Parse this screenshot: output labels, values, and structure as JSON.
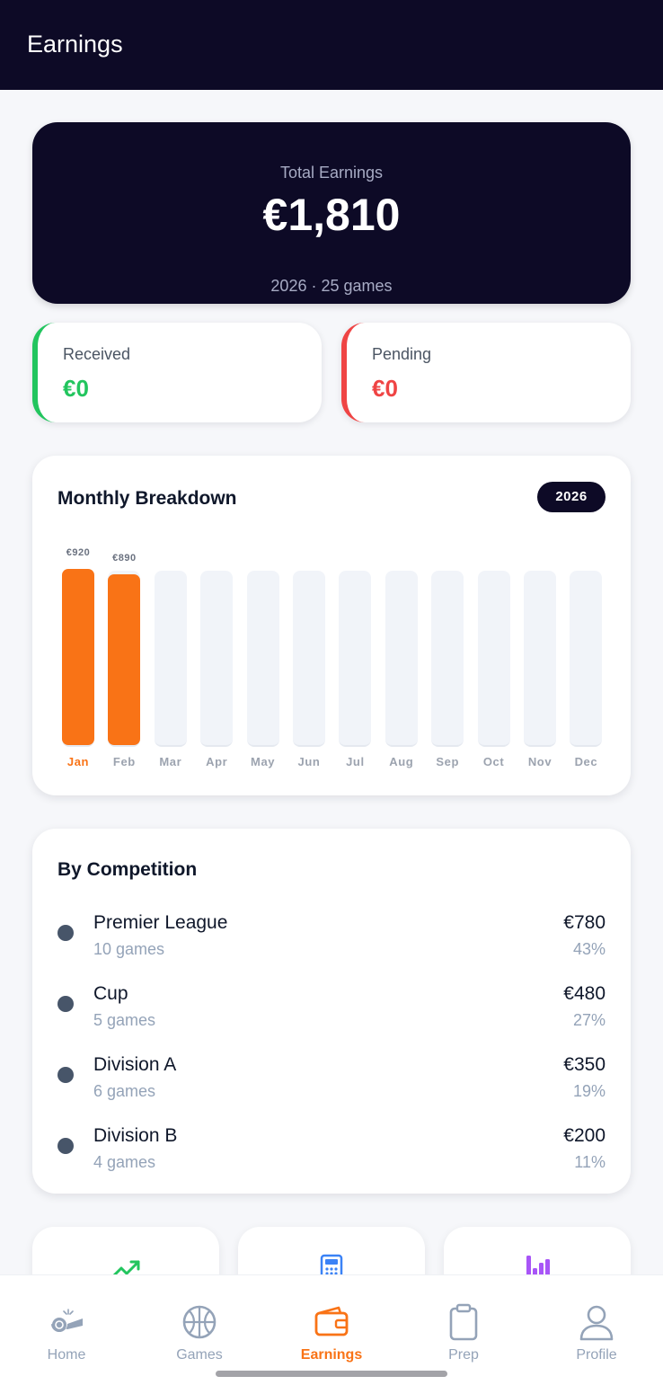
{
  "header": {
    "title": "Earnings"
  },
  "summary": {
    "label": "Total Earnings",
    "amount": "€1,810",
    "year": "2026",
    "separator": "·",
    "games": "25 games"
  },
  "received": {
    "label": "Received",
    "value": "€0",
    "color": "#22c55e"
  },
  "pending": {
    "label": "Pending",
    "value": "€0",
    "color": "#ef4444"
  },
  "monthly": {
    "title": "Monthly Breakdown",
    "year_badge": "2026",
    "accent": "#f97316",
    "chart_data": {
      "type": "bar",
      "categories": [
        "Jan",
        "Feb",
        "Mar",
        "Apr",
        "May",
        "Jun",
        "Jul",
        "Aug",
        "Sep",
        "Oct",
        "Nov",
        "Dec"
      ],
      "values": [
        920,
        890,
        0,
        0,
        0,
        0,
        0,
        0,
        0,
        0,
        0,
        0
      ],
      "value_labels": [
        "€920",
        "€890",
        "",
        "",
        "",
        "",
        "",
        "",
        "",
        "",
        "",
        ""
      ],
      "active_month": "Jan",
      "ylim": [
        0,
        920
      ]
    }
  },
  "competition": {
    "title": "By Competition",
    "items": [
      {
        "name": "Premier League",
        "games": "10 games",
        "amount": "€780",
        "percent": "43%"
      },
      {
        "name": "Cup",
        "games": "5 games",
        "amount": "€480",
        "percent": "27%"
      },
      {
        "name": "Division A",
        "games": "6 games",
        "amount": "€350",
        "percent": "19%"
      },
      {
        "name": "Division B",
        "games": "4 games",
        "amount": "€200",
        "percent": "11%"
      }
    ]
  },
  "quick_cards": [
    {
      "icon": "trending-up-icon",
      "color": "#22c55e"
    },
    {
      "icon": "calculator-icon",
      "color": "#3b82f6"
    },
    {
      "icon": "bar-chart-icon",
      "color": "#a855f7"
    }
  ],
  "nav": {
    "items": [
      {
        "label": "Home",
        "icon": "whistle-icon"
      },
      {
        "label": "Games",
        "icon": "basketball-icon"
      },
      {
        "label": "Earnings",
        "icon": "wallet-icon",
        "active": true
      },
      {
        "label": "Prep",
        "icon": "clipboard-icon"
      },
      {
        "label": "Profile",
        "icon": "user-icon"
      }
    ]
  }
}
